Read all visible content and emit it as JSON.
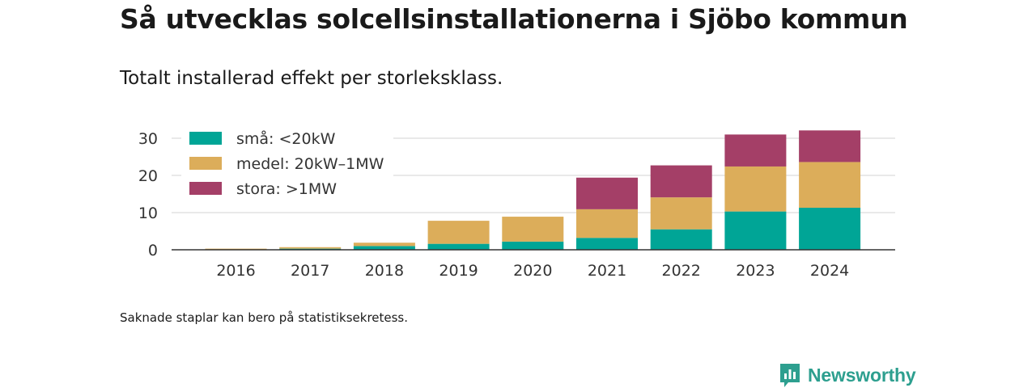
{
  "header": {
    "title": "Så utvecklas solcellsinstallationerna i Sjöbo kommun",
    "subtitle": "Totalt installerad effekt per storleksklass."
  },
  "footnote": "Saknade staplar kan bero på statistiksekretess.",
  "brand": {
    "name": "Newsworthy",
    "icon": "newsworthy-logo-icon",
    "color": "#2d9f8f"
  },
  "chart_data": {
    "type": "bar",
    "stacked": true,
    "categories": [
      "2016",
      "2017",
      "2018",
      "2019",
      "2020",
      "2021",
      "2022",
      "2023",
      "2024"
    ],
    "series": [
      {
        "name": "små: <20kW",
        "color": "#00a596",
        "values": [
          0.1,
          0.3,
          1.0,
          1.6,
          2.2,
          3.2,
          5.5,
          10.3,
          11.3
        ]
      },
      {
        "name": "medel: 20kW–1MW",
        "color": "#dcad5a",
        "values": [
          0.2,
          0.4,
          0.9,
          6.2,
          6.7,
          7.7,
          8.6,
          12.1,
          12.3
        ]
      },
      {
        "name": "stora: >1MW",
        "color": "#a43f67",
        "values": [
          0,
          0,
          0,
          0,
          0,
          8.5,
          8.6,
          8.6,
          8.5
        ]
      }
    ],
    "y_ticks": [
      0,
      10,
      20,
      30
    ],
    "ylim": [
      0,
      34
    ],
    "grid": true,
    "legend_position": "top-left",
    "title": "",
    "xlabel": "",
    "ylabel": ""
  }
}
